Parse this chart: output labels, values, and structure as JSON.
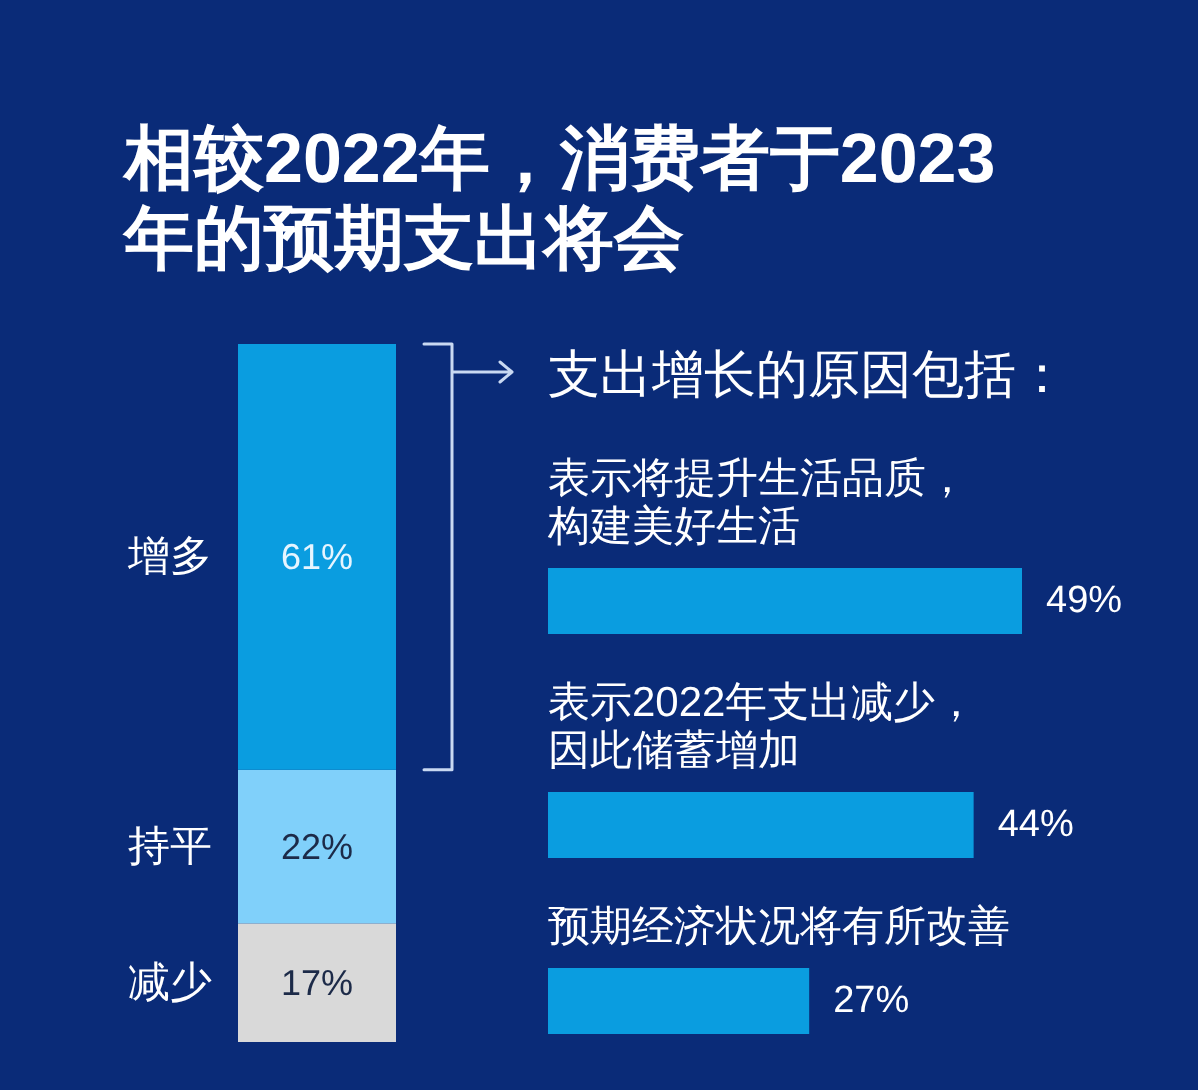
{
  "chart_data": [
    {
      "type": "bar",
      "title": "相较2022年，消费者于2023年的预期支出将会",
      "categories": [
        null
      ],
      "stacked": true,
      "series": [
        {
          "name": "减少",
          "color": "#d9d9d9",
          "values": [
            17
          ],
          "value_labels": [
            "17%"
          ]
        },
        {
          "name": "持平",
          "color": "#80d0fa",
          "values": [
            22
          ],
          "value_labels": [
            "22%"
          ]
        },
        {
          "name": "增多",
          "color": "#0a9de0",
          "values": [
            61
          ],
          "value_labels": [
            "61%"
          ]
        }
      ]
    },
    {
      "type": "bar",
      "orientation": "horizontal",
      "title": "支出增长的原因包括：",
      "categories": [
        "表示将提升生活品质，构建美好生活",
        "表示2022年支出减少，因此储蓄增加",
        "预期经济状况将有所改善"
      ],
      "values": [
        49,
        44,
        27
      ],
      "value_labels": [
        "49%",
        "44%",
        "27%"
      ],
      "color": "#0a9de0"
    }
  ]
}
